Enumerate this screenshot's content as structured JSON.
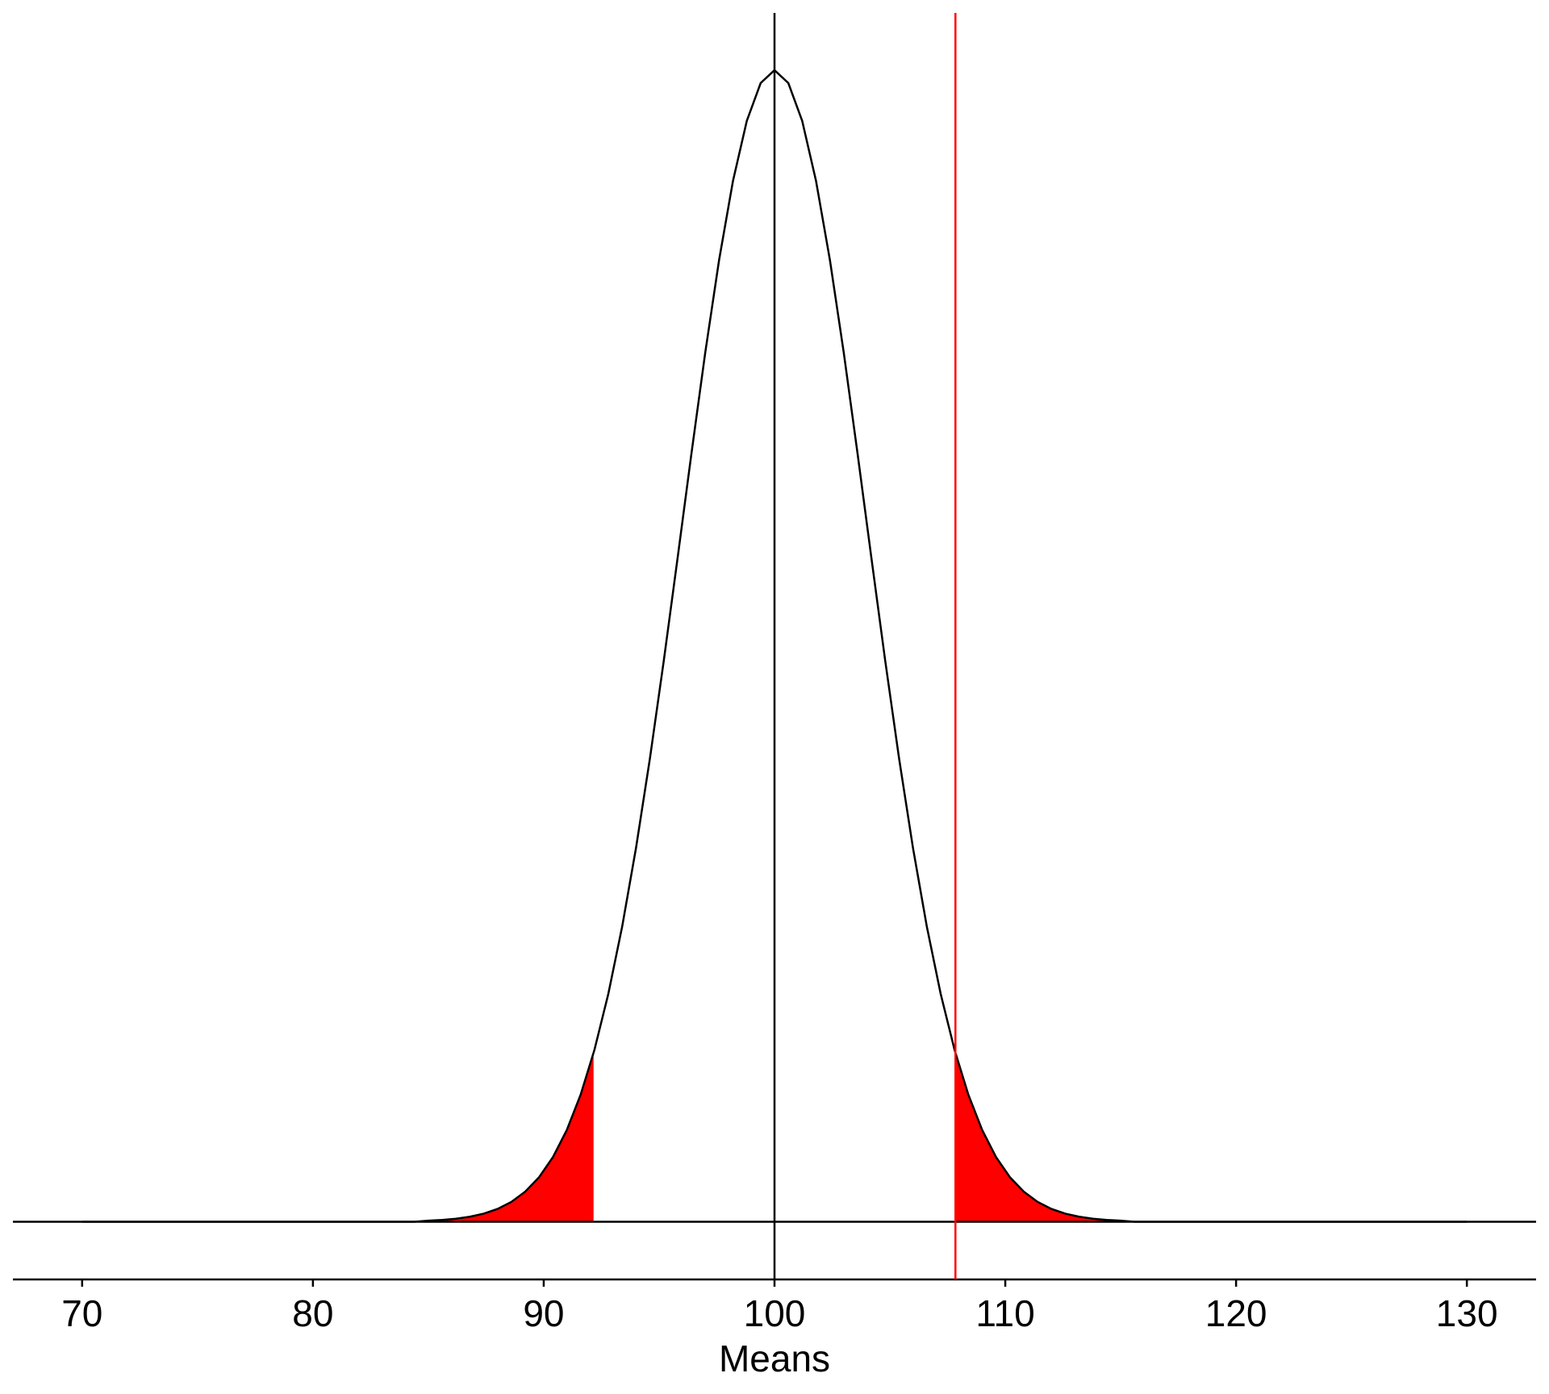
{
  "chart_data": {
    "type": "density",
    "xlabel": "Means",
    "x": [
      70,
      70.6,
      71.2,
      71.8,
      72.4,
      73,
      73.6,
      74.2,
      74.8,
      75.4,
      76,
      76.6,
      77.2,
      77.8,
      78.4,
      79,
      79.6,
      80.2,
      80.8,
      81.4,
      82,
      82.6,
      83.2,
      83.8,
      84.4,
      85,
      85.6,
      86.2,
      86.8,
      87.4,
      88,
      88.6,
      89.2,
      89.8,
      90.4,
      91,
      91.6,
      92.2,
      92.8,
      93.4,
      94,
      94.6,
      95.2,
      95.8,
      96.4,
      97,
      97.6,
      98.2,
      98.8,
      99.4,
      100,
      100.6,
      101.2,
      101.8,
      102.4,
      103,
      103.6,
      104.2,
      104.8,
      105.4,
      106,
      106.6,
      107.2,
      107.8,
      108.4,
      109,
      109.6,
      110.2,
      110.8,
      111.4,
      112,
      112.6,
      113.2,
      113.8,
      114.4,
      115,
      115.6,
      116.2,
      116.8,
      117.4,
      118,
      118.6,
      119.2,
      119.8,
      120.4,
      121,
      121.6,
      122.2,
      122.8,
      123.4,
      124,
      124.6,
      125.2,
      125.8,
      126.4,
      127,
      127.6,
      128.2,
      128.8,
      129.4,
      130
    ],
    "series": [
      {
        "color": "#000000",
        "values": [
          0,
          0,
          0,
          0,
          0,
          0,
          0,
          0,
          0,
          0,
          0,
          0,
          0,
          0,
          0,
          0,
          0,
          0,
          0,
          0,
          0,
          0,
          0,
          0,
          0,
          9e-05,
          0.000153,
          0.000259,
          0.000431,
          0.000698,
          0.00111,
          0.00172,
          0.00261,
          0.00386,
          0.0056,
          0.00794,
          0.011,
          0.0149,
          0.01974,
          0.02557,
          0.03238,
          0.0401,
          0.04855,
          0.05747,
          0.06652,
          0.07529,
          0.08331,
          0.09014,
          0.09535,
          0.09862,
          0.09974,
          0.09862,
          0.09535,
          0.09014,
          0.08331,
          0.07529,
          0.06652,
          0.05747,
          0.04855,
          0.0401,
          0.03238,
          0.02557,
          0.01974,
          0.0149,
          0.011,
          0.00794,
          0.0056,
          0.00386,
          0.00261,
          0.00172,
          0.00111,
          0.000698,
          0.000431,
          0.000259,
          0.000153,
          9e-05,
          0,
          0,
          0,
          0,
          0,
          0,
          0,
          0,
          0,
          0,
          0,
          0,
          0,
          0,
          0,
          0,
          0,
          0,
          0,
          0,
          0,
          0,
          0,
          0,
          0
        ]
      }
    ],
    "shade_below": 92.16,
    "shade_above": 107.84,
    "shade_color": "#ff0000",
    "reference_lines": [
      {
        "x": 100,
        "color": "#000000"
      },
      {
        "x": 107.84,
        "color": "#ff0000"
      }
    ],
    "hline": 0,
    "xlim": [
      67,
      133
    ],
    "ylim": [
      -0.005,
      0.1047
    ],
    "xticks": [
      70,
      80,
      90,
      100,
      110,
      120,
      130
    ]
  }
}
